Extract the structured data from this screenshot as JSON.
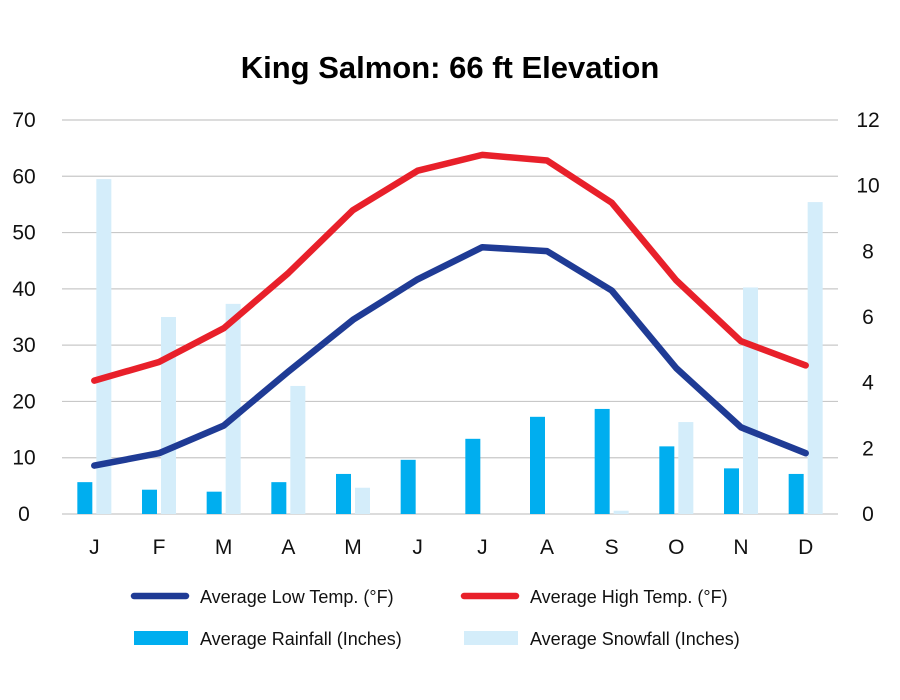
{
  "chart_data": {
    "type": "bar+line",
    "title": "King Salmon: 66 ft Elevation",
    "categories": [
      "J",
      "F",
      "M",
      "A",
      "M",
      "J",
      "J",
      "A",
      "S",
      "O",
      "N",
      "D"
    ],
    "left_axis": {
      "min": 0,
      "max": 70,
      "step": 10,
      "ticks": [
        "0",
        "10",
        "20",
        "30",
        "40",
        "50",
        "60",
        "70"
      ]
    },
    "right_axis": {
      "min": 0,
      "max": 12,
      "step": 2,
      "ticks": [
        "0",
        "2",
        "4",
        "6",
        "8",
        "10",
        "12"
      ]
    },
    "grid": true,
    "series": [
      {
        "name": "Average Low Temp. (°F)",
        "type": "line",
        "axis": "left",
        "color": "#1f3b95",
        "values": [
          8.6,
          10.8,
          15.7,
          25.3,
          34.5,
          41.7,
          47.4,
          46.7,
          39.7,
          25.9,
          15.4,
          10.8
        ]
      },
      {
        "name": "Average High Temp. (°F)",
        "type": "line",
        "axis": "left",
        "color": "#e8202a",
        "values": [
          23.7,
          27.0,
          33.0,
          42.8,
          54.0,
          61.0,
          63.8,
          62.8,
          55.3,
          41.5,
          30.7,
          26.4
        ]
      },
      {
        "name": "Average Rainfall (Inches)",
        "type": "bar",
        "axis": "right",
        "color": "#00aeef",
        "values": [
          0.97,
          0.74,
          0.68,
          0.97,
          1.22,
          1.65,
          2.29,
          2.96,
          3.2,
          2.06,
          1.39,
          1.22
        ]
      },
      {
        "name": "Average Snowfall (Inches)",
        "type": "bar",
        "axis": "right",
        "color": "#d4edfa",
        "values": [
          10.2,
          6.0,
          6.4,
          3.9,
          0.8,
          0,
          0,
          0,
          0.1,
          2.8,
          6.9,
          9.5
        ]
      }
    ],
    "legend": {
      "placement": "bottom",
      "items": [
        {
          "label": "Average Low Temp. (°F)",
          "kind": "line",
          "color": "#1f3b95"
        },
        {
          "label": "Average High Temp. (°F)",
          "kind": "line",
          "color": "#e8202a"
        },
        {
          "label": "Average Rainfall (Inches)",
          "kind": "bar",
          "color": "#00aeef"
        },
        {
          "label": "Average Snowfall (Inches)",
          "kind": "bar",
          "color": "#d4edfa"
        }
      ]
    },
    "gridline_color": "#c8c8c8"
  }
}
